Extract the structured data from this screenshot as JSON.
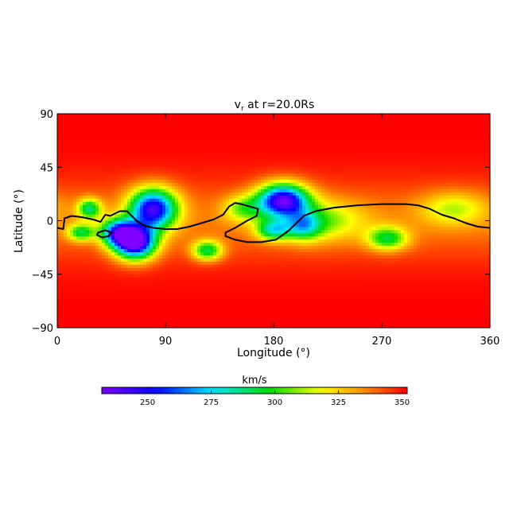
{
  "chart_data": {
    "type": "heatmap",
    "title": "v",
    "title_subscript": "r",
    "title_suffix": " at r=20.0Rs",
    "xlabel": "Longitude (°)",
    "ylabel": "Latitude (°)",
    "xlim": [
      0,
      360
    ],
    "ylim": [
      -90,
      90
    ],
    "xticks": [
      0,
      90,
      180,
      270,
      360
    ],
    "yticks": [
      -90,
      -45,
      0,
      45,
      90
    ],
    "xtick_labels": [
      "0",
      "90",
      "180",
      "270",
      "360"
    ],
    "ytick_labels": [
      "−90",
      "−45",
      "0",
      "45",
      "90"
    ],
    "colorbar": {
      "label": "km/s",
      "range": [
        232,
        352
      ],
      "ticks": [
        250,
        275,
        300,
        325,
        350
      ],
      "tick_labels": [
        "250",
        "275",
        "300",
        "325",
        "350"
      ],
      "colormap": "rainbow"
    },
    "background_speed": 352,
    "slow_wind_features": [
      {
        "lon": 27,
        "lat": 10,
        "speed": 300,
        "spread_lon": 7,
        "spread_lat": 6
      },
      {
        "lon": 20,
        "lat": -10,
        "speed": 305,
        "spread_lon": 8,
        "spread_lat": 5
      },
      {
        "lon": 80,
        "lat": 10,
        "speed": 255,
        "spread_lon": 14,
        "spread_lat": 12
      },
      {
        "lon": 65,
        "lat": -18,
        "speed": 238,
        "spread_lon": 12,
        "spread_lat": 10
      },
      {
        "lon": 50,
        "lat": -10,
        "speed": 280,
        "spread_lon": 10,
        "spread_lat": 8
      },
      {
        "lon": 125,
        "lat": -25,
        "speed": 300,
        "spread_lon": 9,
        "spread_lat": 6
      },
      {
        "lon": 188,
        "lat": 17,
        "speed": 250,
        "spread_lon": 15,
        "spread_lat": 10
      },
      {
        "lon": 180,
        "lat": -8,
        "speed": 300,
        "spread_lon": 10,
        "spread_lat": 6
      },
      {
        "lon": 205,
        "lat": -5,
        "speed": 310,
        "spread_lon": 10,
        "spread_lat": 8
      },
      {
        "lon": 275,
        "lat": -15,
        "speed": 305,
        "spread_lon": 12,
        "spread_lat": 7
      },
      {
        "lon": 155,
        "lat": 10,
        "speed": 320,
        "spread_lon": 12,
        "spread_lat": 8
      },
      {
        "lon": 330,
        "lat": 10,
        "speed": 325,
        "spread_lon": 20,
        "spread_lat": 10
      },
      {
        "lon": 220,
        "lat": 0,
        "speed": 320,
        "spread_lon": 25,
        "spread_lat": 12
      }
    ],
    "neutral_line": [
      [
        0,
        -6
      ],
      [
        5,
        -7
      ],
      [
        6,
        2
      ],
      [
        12,
        4
      ],
      [
        20,
        3
      ],
      [
        30,
        1
      ],
      [
        36,
        -1
      ],
      [
        40,
        5
      ],
      [
        44,
        4
      ],
      [
        52,
        8
      ],
      [
        58,
        8
      ],
      [
        62,
        4
      ],
      [
        66,
        0
      ],
      [
        72,
        -4
      ],
      [
        80,
        -6
      ],
      [
        90,
        -7
      ],
      [
        100,
        -7
      ],
      [
        110,
        -5
      ],
      [
        120,
        -2
      ],
      [
        130,
        1
      ],
      [
        138,
        5
      ],
      [
        143,
        12
      ],
      [
        148,
        15
      ],
      [
        153,
        14
      ],
      [
        160,
        12
      ],
      [
        167,
        10
      ],
      [
        166,
        4
      ],
      [
        158,
        0
      ],
      [
        148,
        -6
      ],
      [
        140,
        -10
      ],
      [
        140,
        -13
      ],
      [
        148,
        -16
      ],
      [
        158,
        -18
      ],
      [
        170,
        -18
      ],
      [
        182,
        -16
      ],
      [
        193,
        -8
      ],
      [
        200,
        -1
      ],
      [
        205,
        4
      ],
      [
        215,
        8
      ],
      [
        230,
        11
      ],
      [
        250,
        13
      ],
      [
        270,
        14
      ],
      [
        290,
        14
      ],
      [
        300,
        13
      ],
      [
        310,
        10
      ],
      [
        320,
        5
      ],
      [
        330,
        2
      ],
      [
        340,
        -2
      ],
      [
        350,
        -5
      ],
      [
        360,
        -6
      ]
    ],
    "neutral_loop": [
      [
        34,
        -10
      ],
      [
        40,
        -8
      ],
      [
        45,
        -10
      ],
      [
        43,
        -13
      ],
      [
        37,
        -14
      ],
      [
        33,
        -12
      ],
      [
        34,
        -10
      ]
    ]
  }
}
